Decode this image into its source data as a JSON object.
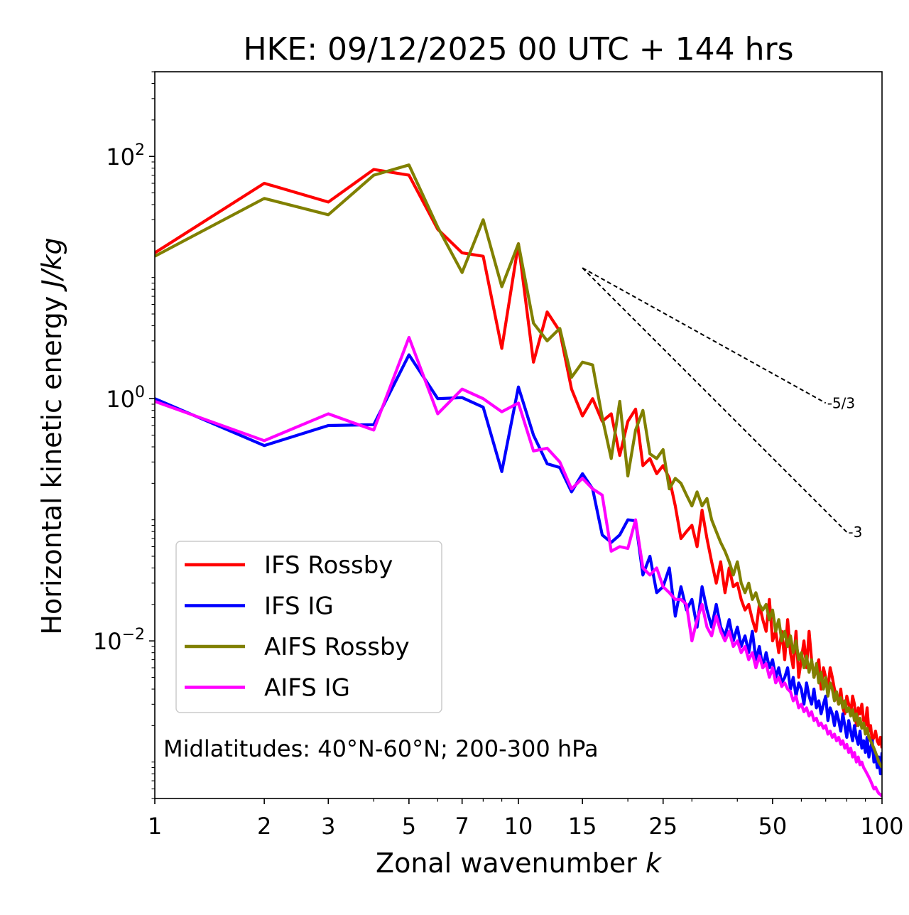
{
  "chart_data": {
    "type": "line",
    "title": "HKE: 09/12/2025 00 UTC + 144 hrs",
    "xlabel_text": "Zonal wavenumber ",
    "xlabel_var": "k",
    "ylabel_text": "Horizontal kinetic energy ",
    "ylabel_units": "J/kg",
    "xscale": "log",
    "yscale": "log",
    "xlim": [
      1,
      100
    ],
    "ylim": [
      0.0005,
      500
    ],
    "x_ticks": [
      1,
      2,
      3,
      5,
      7,
      10,
      15,
      25,
      50,
      100
    ],
    "x_tick_labels": [
      "1",
      "2",
      "3",
      "5",
      "7",
      "10",
      "15",
      "25",
      "50",
      "100"
    ],
    "y_ticks": [
      {
        "value": 100,
        "base": "10",
        "exp": "2"
      },
      {
        "value": 1,
        "base": "10",
        "exp": "0"
      },
      {
        "value": 0.01,
        "base": "10",
        "exp": "−2"
      }
    ],
    "annotation": "Midlatitudes: 40°N-60°N; 200-300 hPa",
    "reference_lines": [
      {
        "label": "-5/3",
        "slope": -1.667,
        "x0": 15,
        "y0": 12,
        "x1": 70,
        "y1": 0.92
      },
      {
        "label": "-3",
        "slope": -3,
        "x0": 15,
        "y0": 12,
        "x1": 80,
        "y1": 0.079
      }
    ],
    "series": [
      {
        "name": "IFS Rossby",
        "color": "#ff0000",
        "x": [
          1,
          2,
          3,
          4,
          5,
          6,
          7,
          8,
          9,
          10,
          11,
          12,
          13,
          14,
          15,
          16,
          17,
          18,
          19,
          20,
          21,
          22,
          23,
          24,
          25,
          26,
          27,
          28,
          29,
          30,
          31,
          32,
          33,
          34,
          35,
          36,
          37,
          38,
          39,
          40,
          41,
          42,
          43,
          44,
          45,
          46,
          47,
          48,
          49,
          50,
          51,
          52,
          53,
          54,
          55,
          56,
          57,
          58,
          59,
          60,
          61,
          62,
          63,
          64,
          65,
          66,
          67,
          68,
          69,
          70,
          71,
          72,
          73,
          74,
          75,
          76,
          77,
          78,
          79,
          80,
          81,
          82,
          83,
          84,
          85,
          86,
          87,
          88,
          89,
          90,
          91,
          92,
          93,
          94,
          95,
          96,
          97,
          98,
          99,
          100
        ],
        "y": [
          16,
          60,
          42,
          78,
          70,
          25,
          16,
          15,
          2.6,
          19,
          2.0,
          5.2,
          3.6,
          1.2,
          0.72,
          1.0,
          0.65,
          0.75,
          0.34,
          0.65,
          0.82,
          0.28,
          0.32,
          0.24,
          0.28,
          0.22,
          0.13,
          0.07,
          0.08,
          0.09,
          0.06,
          0.12,
          0.07,
          0.045,
          0.03,
          0.045,
          0.025,
          0.04,
          0.028,
          0.03,
          0.022,
          0.018,
          0.02,
          0.015,
          0.012,
          0.02,
          0.015,
          0.012,
          0.022,
          0.01,
          0.012,
          0.008,
          0.012,
          0.007,
          0.015,
          0.008,
          0.006,
          0.012,
          0.005,
          0.007,
          0.01,
          0.006,
          0.012,
          0.007,
          0.005,
          0.006,
          0.007,
          0.004,
          0.006,
          0.005,
          0.004,
          0.006,
          0.005,
          0.004,
          0.0035,
          0.003,
          0.004,
          0.0028,
          0.0025,
          0.0035,
          0.003,
          0.0025,
          0.0035,
          0.003,
          0.002,
          0.0028,
          0.0025,
          0.003,
          0.0022,
          0.002,
          0.0028,
          0.0018,
          0.002,
          0.0015,
          0.0016,
          0.0018,
          0.0015,
          0.0014,
          0.0016,
          0.0013
        ]
      },
      {
        "name": "IFS IG",
        "color": "#0000ff",
        "x": [
          1,
          2,
          3,
          4,
          5,
          6,
          7,
          8,
          9,
          10,
          11,
          12,
          13,
          14,
          15,
          16,
          17,
          18,
          19,
          20,
          21,
          22,
          23,
          24,
          25,
          26,
          27,
          28,
          29,
          30,
          31,
          32,
          33,
          34,
          35,
          36,
          37,
          38,
          39,
          40,
          41,
          42,
          43,
          44,
          45,
          46,
          47,
          48,
          49,
          50,
          51,
          52,
          53,
          54,
          55,
          56,
          57,
          58,
          59,
          60,
          61,
          62,
          63,
          64,
          65,
          66,
          67,
          68,
          69,
          70,
          71,
          72,
          73,
          74,
          75,
          76,
          77,
          78,
          79,
          80,
          81,
          82,
          83,
          84,
          85,
          86,
          87,
          88,
          89,
          90,
          91,
          92,
          93,
          94,
          95,
          96,
          97,
          98,
          99,
          100
        ],
        "y": [
          1.0,
          0.41,
          0.6,
          0.61,
          2.3,
          1.0,
          1.02,
          0.85,
          0.25,
          1.25,
          0.5,
          0.29,
          0.27,
          0.17,
          0.24,
          0.18,
          0.075,
          0.065,
          0.075,
          0.1,
          0.098,
          0.035,
          0.05,
          0.025,
          0.028,
          0.04,
          0.016,
          0.028,
          0.018,
          0.022,
          0.013,
          0.028,
          0.018,
          0.013,
          0.02,
          0.013,
          0.011,
          0.015,
          0.01,
          0.013,
          0.009,
          0.011,
          0.008,
          0.012,
          0.007,
          0.009,
          0.006,
          0.008,
          0.006,
          0.007,
          0.005,
          0.006,
          0.0045,
          0.005,
          0.006,
          0.004,
          0.005,
          0.0035,
          0.0045,
          0.004,
          0.003,
          0.0045,
          0.0035,
          0.003,
          0.004,
          0.0028,
          0.0032,
          0.0025,
          0.003,
          0.0035,
          0.0022,
          0.0028,
          0.0025,
          0.002,
          0.0026,
          0.0022,
          0.0018,
          0.0025,
          0.002,
          0.0016,
          0.0022,
          0.0018,
          0.0015,
          0.002,
          0.0016,
          0.0014,
          0.0018,
          0.0013,
          0.0015,
          0.0012,
          0.0016,
          0.0011,
          0.0013,
          0.0015,
          0.001,
          0.0012,
          0.0009,
          0.0011,
          0.0008,
          0.0012
        ]
      },
      {
        "name": "AIFS Rossby",
        "color": "#808000",
        "x": [
          1,
          2,
          3,
          4,
          5,
          6,
          7,
          8,
          9,
          10,
          11,
          12,
          13,
          14,
          15,
          16,
          17,
          18,
          19,
          20,
          21,
          22,
          23,
          24,
          25,
          26,
          27,
          28,
          29,
          30,
          31,
          32,
          33,
          34,
          35,
          36,
          37,
          38,
          39,
          40,
          41,
          42,
          43,
          44,
          45,
          46,
          47,
          48,
          49,
          50,
          51,
          52,
          53,
          54,
          55,
          56,
          57,
          58,
          59,
          60,
          61,
          62,
          63,
          64,
          65,
          66,
          67,
          68,
          69,
          70,
          71,
          72,
          73,
          74,
          75,
          76,
          77,
          78,
          79,
          80,
          81,
          82,
          83,
          84,
          85,
          86,
          87,
          88,
          89,
          90,
          91,
          92,
          93,
          94,
          95,
          96,
          97,
          98,
          99,
          100
        ],
        "y": [
          15,
          45,
          33,
          70,
          85,
          26,
          11,
          30,
          8.4,
          19,
          4.2,
          3.0,
          3.8,
          1.5,
          2.0,
          1.9,
          0.7,
          0.32,
          0.95,
          0.23,
          0.55,
          0.8,
          0.35,
          0.32,
          0.38,
          0.18,
          0.22,
          0.2,
          0.16,
          0.13,
          0.17,
          0.13,
          0.15,
          0.1,
          0.08,
          0.065,
          0.055,
          0.045,
          0.035,
          0.045,
          0.03,
          0.025,
          0.03,
          0.022,
          0.025,
          0.02,
          0.018,
          0.02,
          0.015,
          0.018,
          0.012,
          0.015,
          0.01,
          0.012,
          0.009,
          0.011,
          0.008,
          0.01,
          0.007,
          0.008,
          0.006,
          0.0075,
          0.0055,
          0.007,
          0.005,
          0.0065,
          0.0045,
          0.0055,
          0.004,
          0.005,
          0.0035,
          0.0045,
          0.004,
          0.0032,
          0.0038,
          0.003,
          0.0034,
          0.0028,
          0.0032,
          0.0026,
          0.0028,
          0.0024,
          0.0027,
          0.0022,
          0.0025,
          0.002,
          0.0023,
          0.0019,
          0.0021,
          0.0017,
          0.0019,
          0.0016,
          0.0015,
          0.0014,
          0.0013,
          0.0012,
          0.0011,
          0.001,
          0.00095,
          0.0009
        ]
      },
      {
        "name": "AIFS IG",
        "color": "#ff00ff",
        "x": [
          1,
          2,
          3,
          4,
          5,
          6,
          7,
          8,
          9,
          10,
          11,
          12,
          13,
          14,
          15,
          16,
          17,
          18,
          19,
          20,
          21,
          22,
          23,
          24,
          25,
          26,
          27,
          28,
          29,
          30,
          31,
          32,
          33,
          34,
          35,
          36,
          37,
          38,
          39,
          40,
          41,
          42,
          43,
          44,
          45,
          46,
          47,
          48,
          49,
          50,
          51,
          52,
          53,
          54,
          55,
          56,
          57,
          58,
          59,
          60,
          61,
          62,
          63,
          64,
          65,
          66,
          67,
          68,
          69,
          70,
          71,
          72,
          73,
          74,
          75,
          76,
          77,
          78,
          79,
          80,
          81,
          82,
          83,
          84,
          85,
          86,
          87,
          88,
          89,
          90,
          91,
          92,
          93,
          94,
          95,
          96,
          97,
          98,
          99,
          100
        ],
        "y": [
          0.95,
          0.45,
          0.75,
          0.55,
          3.2,
          0.75,
          1.2,
          1.0,
          0.78,
          0.92,
          0.37,
          0.39,
          0.3,
          0.18,
          0.22,
          0.18,
          0.16,
          0.055,
          0.06,
          0.058,
          0.1,
          0.04,
          0.035,
          0.04,
          0.028,
          0.025,
          0.022,
          0.022,
          0.02,
          0.01,
          0.015,
          0.02,
          0.013,
          0.011,
          0.016,
          0.012,
          0.01,
          0.012,
          0.009,
          0.01,
          0.008,
          0.009,
          0.007,
          0.008,
          0.006,
          0.0075,
          0.006,
          0.0065,
          0.005,
          0.006,
          0.0045,
          0.005,
          0.0042,
          0.0045,
          0.004,
          0.0038,
          0.0032,
          0.0035,
          0.0028,
          0.003,
          0.0026,
          0.0028,
          0.0024,
          0.0026,
          0.0022,
          0.0023,
          0.002,
          0.0021,
          0.0019,
          0.002,
          0.0017,
          0.0018,
          0.0016,
          0.0017,
          0.0015,
          0.0016,
          0.0014,
          0.0015,
          0.0013,
          0.0014,
          0.0012,
          0.0013,
          0.0011,
          0.0012,
          0.001,
          0.0011,
          0.00095,
          0.001,
          0.0009,
          0.00085,
          0.0008,
          0.00075,
          0.0007,
          0.00065,
          0.0006,
          0.00062,
          0.00058,
          0.00055,
          0.00054,
          0.00052
        ]
      }
    ]
  }
}
